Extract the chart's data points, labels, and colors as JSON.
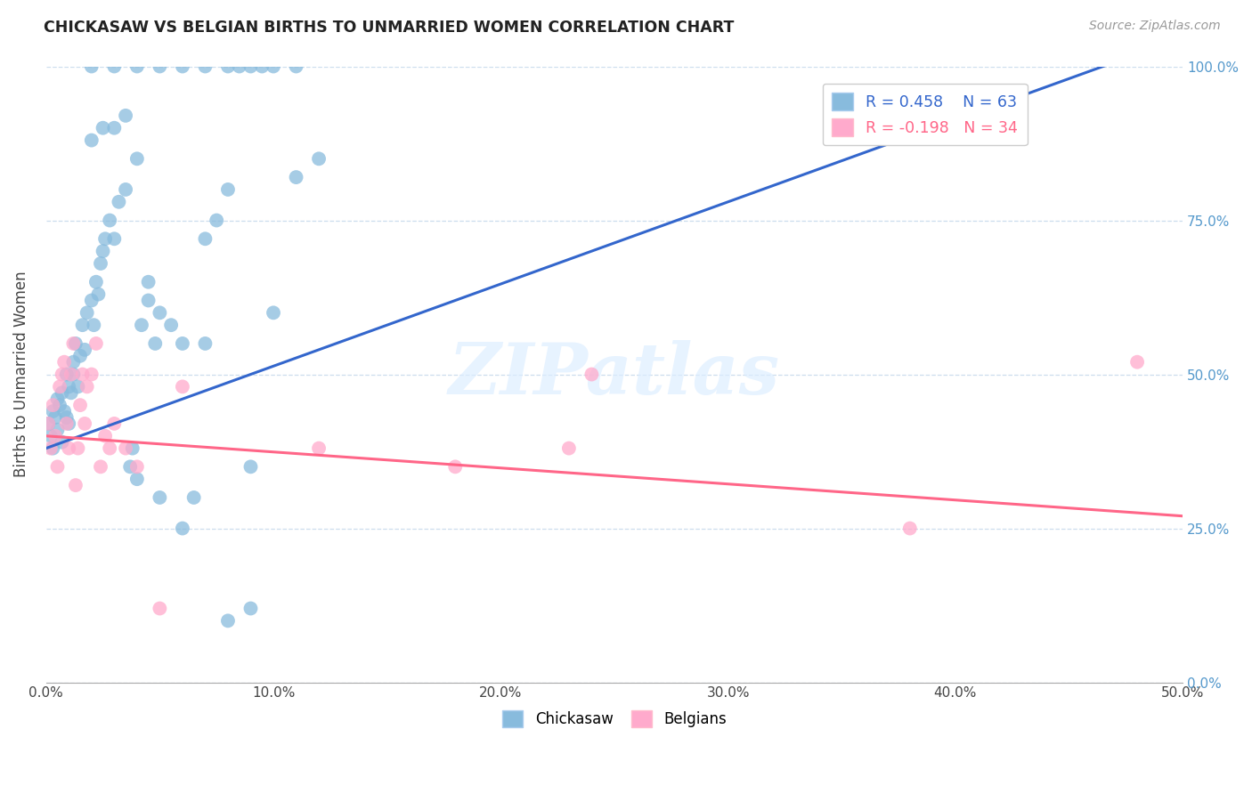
{
  "title": "CHICKASAW VS BELGIAN BIRTHS TO UNMARRIED WOMEN CORRELATION CHART",
  "source": "Source: ZipAtlas.com",
  "ylabel": "Births to Unmarried Women",
  "yaxis_labels_right": [
    "0.0%",
    "25.0%",
    "50.0%",
    "75.0%",
    "100.0%"
  ],
  "xtick_labels": [
    "0.0%",
    "10.0%",
    "20.0%",
    "30.0%",
    "40.0%",
    "50.0%"
  ],
  "legend_r_blue": "R = 0.458",
  "legend_n_blue": "N = 63",
  "legend_r_pink": "R = -0.198",
  "legend_n_pink": "N = 34",
  "legend_label_blue": "Chickasaw",
  "legend_label_pink": "Belgians",
  "blue_scatter_color": "#88BBDD",
  "pink_scatter_color": "#FFAACC",
  "trendline_blue_color": "#3366CC",
  "trendline_pink_color": "#FF6688",
  "watermark_color": "#DDEEFF",
  "watermark_text": "ZIPatlas",
  "chickasaw_x": [
    0.001,
    0.002,
    0.003,
    0.003,
    0.004,
    0.005,
    0.005,
    0.006,
    0.007,
    0.007,
    0.008,
    0.009,
    0.009,
    0.01,
    0.01,
    0.011,
    0.012,
    0.012,
    0.013,
    0.014,
    0.015,
    0.016,
    0.017,
    0.018,
    0.02,
    0.021,
    0.022,
    0.023,
    0.024,
    0.025,
    0.026,
    0.028,
    0.03,
    0.032,
    0.035,
    0.037,
    0.038,
    0.04,
    0.042,
    0.045,
    0.048,
    0.05,
    0.055,
    0.06,
    0.065,
    0.07,
    0.075,
    0.08,
    0.09,
    0.1,
    0.11,
    0.12,
    0.02,
    0.025,
    0.03,
    0.035,
    0.04,
    0.045,
    0.05,
    0.06,
    0.07,
    0.08,
    0.09
  ],
  "chickasaw_y": [
    0.42,
    0.4,
    0.38,
    0.44,
    0.43,
    0.41,
    0.46,
    0.45,
    0.39,
    0.47,
    0.44,
    0.43,
    0.5,
    0.42,
    0.48,
    0.47,
    0.5,
    0.52,
    0.55,
    0.48,
    0.53,
    0.58,
    0.54,
    0.6,
    0.62,
    0.58,
    0.65,
    0.63,
    0.68,
    0.7,
    0.72,
    0.75,
    0.72,
    0.78,
    0.8,
    0.35,
    0.38,
    0.33,
    0.58,
    0.62,
    0.55,
    0.6,
    0.58,
    0.55,
    0.3,
    0.72,
    0.75,
    0.8,
    0.35,
    0.6,
    0.82,
    0.85,
    0.88,
    0.9,
    0.9,
    0.92,
    0.85,
    0.65,
    0.3,
    0.25,
    0.55,
    0.1,
    0.12
  ],
  "chickasaw_top_x": [
    0.02,
    0.03,
    0.04,
    0.05,
    0.06,
    0.07,
    0.08,
    0.085,
    0.09,
    0.095,
    0.1,
    0.11
  ],
  "chickasaw_top_y": [
    1.0,
    1.0,
    1.0,
    1.0,
    1.0,
    1.0,
    1.0,
    1.0,
    1.0,
    1.0,
    1.0,
    1.0
  ],
  "belgian_x": [
    0.001,
    0.002,
    0.003,
    0.004,
    0.005,
    0.006,
    0.007,
    0.008,
    0.009,
    0.01,
    0.011,
    0.012,
    0.013,
    0.014,
    0.015,
    0.016,
    0.017,
    0.018,
    0.02,
    0.022,
    0.024,
    0.026,
    0.028,
    0.03,
    0.035,
    0.04,
    0.05,
    0.06,
    0.12,
    0.18,
    0.23,
    0.24,
    0.38,
    0.48
  ],
  "belgian_y": [
    0.42,
    0.38,
    0.45,
    0.4,
    0.35,
    0.48,
    0.5,
    0.52,
    0.42,
    0.38,
    0.5,
    0.55,
    0.32,
    0.38,
    0.45,
    0.5,
    0.42,
    0.48,
    0.5,
    0.55,
    0.35,
    0.4,
    0.38,
    0.42,
    0.38,
    0.35,
    0.12,
    0.48,
    0.38,
    0.35,
    0.38,
    0.5,
    0.25,
    0.52
  ],
  "trendline_blue_x0": 0.0,
  "trendline_blue_y0": 0.38,
  "trendline_blue_x1": 0.48,
  "trendline_blue_y1": 1.02,
  "trendline_pink_x0": 0.0,
  "trendline_pink_y0": 0.4,
  "trendline_pink_x1": 0.5,
  "trendline_pink_y1": 0.27,
  "xlim": [
    0.0,
    0.5
  ],
  "ylim": [
    0.0,
    1.0
  ],
  "yticks": [
    0.0,
    0.25,
    0.5,
    0.75,
    1.0
  ],
  "xticks": [
    0.0,
    0.1,
    0.2,
    0.3,
    0.4,
    0.5
  ]
}
